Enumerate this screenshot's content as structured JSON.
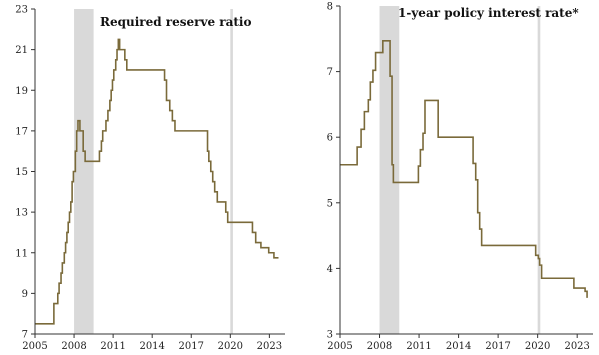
{
  "chart_data": [
    {
      "type": "line",
      "title": "Required reserve ratio",
      "xlabel": "",
      "ylabel": "",
      "xlim": [
        2005,
        2024.2
      ],
      "ylim": [
        7,
        23
      ],
      "x_ticks": [
        "2005",
        "2008",
        "2011",
        "2014",
        "2017",
        "2020",
        "2023"
      ],
      "y_ticks": [
        "7",
        "9",
        "11",
        "13",
        "15",
        "17",
        "19",
        "21",
        "23"
      ],
      "shaded_periods": [
        [
          2008.0,
          2009.5
        ],
        [
          2020.0,
          2020.2
        ]
      ],
      "grid": false,
      "series": [
        {
          "color": "#7a6a3a",
          "step": true,
          "x": [
            2005.0,
            2006.45,
            2006.6,
            2006.75,
            2006.85,
            2007.0,
            2007.1,
            2007.25,
            2007.35,
            2007.45,
            2007.55,
            2007.65,
            2007.75,
            2007.85,
            2007.95,
            2008.1,
            2008.2,
            2008.3,
            2008.45,
            2008.7,
            2008.85,
            2009.95,
            2010.1,
            2010.2,
            2010.35,
            2010.45,
            2010.6,
            2010.75,
            2010.85,
            2010.95,
            2011.05,
            2011.2,
            2011.3,
            2011.4,
            2011.5,
            2011.9,
            2012.05,
            2012.3,
            2012.45,
            2014.05,
            2014.95,
            2015.1,
            2015.35,
            2015.55,
            2015.75,
            2016.0,
            2018.25,
            2018.35,
            2018.5,
            2018.65,
            2018.8,
            2019.0,
            2019.65,
            2019.8,
            2020.0,
            2021.7,
            2021.95,
            2022.35,
            2022.95,
            2023.35,
            2023.6,
            2023.7
          ],
          "values": [
            7.5,
            8.5,
            8.5,
            9.0,
            9.5,
            10.0,
            10.5,
            11.0,
            11.5,
            12.0,
            12.5,
            13.0,
            13.5,
            14.5,
            15.0,
            16.0,
            17.0,
            17.5,
            17.0,
            16.0,
            15.5,
            16.0,
            16.5,
            17.0,
            17.0,
            17.5,
            18.0,
            18.5,
            19.0,
            19.5,
            20.0,
            20.5,
            21.0,
            21.5,
            21.0,
            20.5,
            20.0,
            20.0,
            20.0,
            20.0,
            19.5,
            18.5,
            18.0,
            17.5,
            17.0,
            17.0,
            16.0,
            15.5,
            15.0,
            14.5,
            14.0,
            13.5,
            13.0,
            12.5,
            12.5,
            12.0,
            11.5,
            11.25,
            11.0,
            10.75,
            10.75,
            10.75
          ]
        }
      ]
    },
    {
      "type": "line",
      "title": "1-year policy interest rate*",
      "xlabel": "",
      "ylabel": "",
      "xlim": [
        2005,
        2024.2
      ],
      "ylim": [
        3,
        8
      ],
      "x_ticks": [
        "2005",
        "2008",
        "2011",
        "2014",
        "2017",
        "2020",
        "2023"
      ],
      "y_ticks": [
        "3",
        "4",
        "5",
        "6",
        "7",
        "8"
      ],
      "shaded_periods": [
        [
          2008.0,
          2009.5
        ],
        [
          2020.0,
          2020.2
        ]
      ],
      "grid": false,
      "series": [
        {
          "color": "#7a6a3a",
          "step": true,
          "x": [
            2005.0,
            2006.3,
            2006.6,
            2006.85,
            2007.15,
            2007.3,
            2007.5,
            2007.7,
            2008.25,
            2008.8,
            2008.95,
            2009.05,
            2010.8,
            2010.95,
            2011.1,
            2011.3,
            2011.45,
            2012.45,
            2015.1,
            2015.3,
            2015.45,
            2015.6,
            2015.75,
            2015.9,
            2019.75,
            2019.85,
            2020.05,
            2020.15,
            2020.3,
            2022.0,
            2022.75,
            2023.6,
            2023.75
          ],
          "values": [
            5.58,
            5.85,
            6.12,
            6.39,
            6.57,
            6.84,
            7.02,
            7.29,
            7.47,
            6.93,
            5.58,
            5.31,
            5.31,
            5.56,
            5.81,
            6.06,
            6.56,
            6.0,
            5.6,
            5.35,
            4.85,
            4.6,
            4.35,
            4.35,
            4.35,
            4.2,
            4.15,
            4.05,
            3.85,
            3.85,
            3.7,
            3.65,
            3.55
          ]
        }
      ]
    }
  ]
}
